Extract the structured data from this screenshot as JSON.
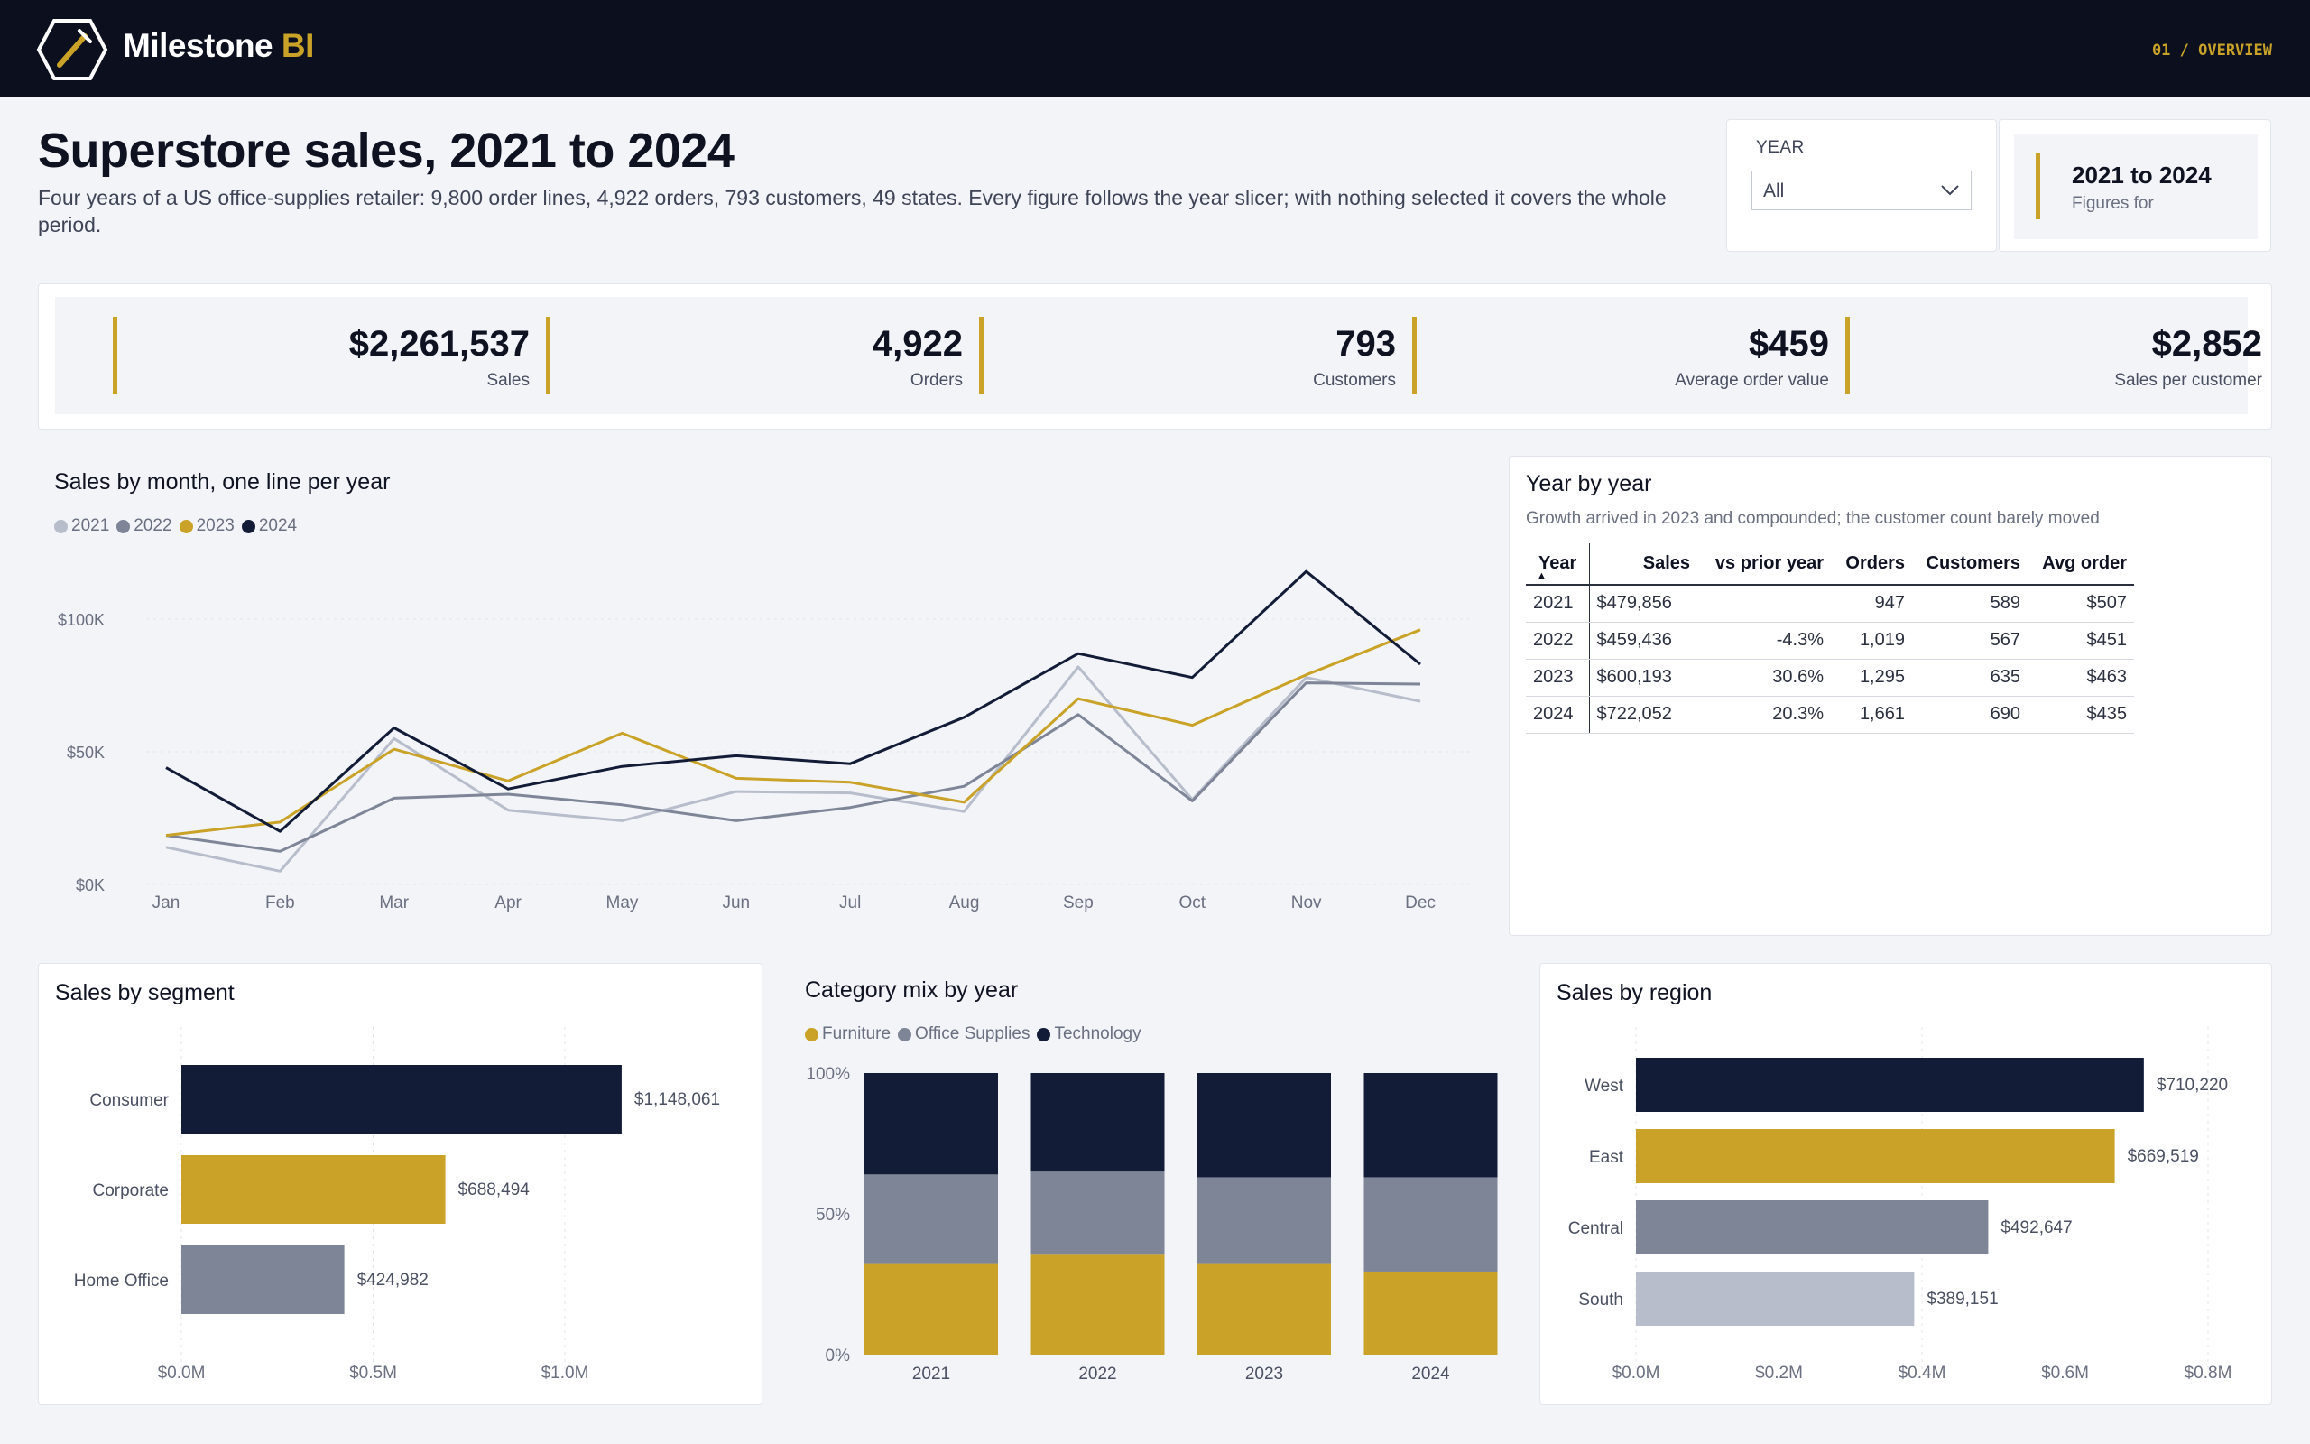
{
  "app": {
    "brand_name": "Milestone",
    "brand_accent": "BI",
    "page_tag": "01 / OVERVIEW"
  },
  "header": {
    "title": "Superstore sales, 2021 to 2024",
    "subtitle": "Four years of a US office-supplies retailer: 9,800 order lines, 4,922 orders, 793 customers, 49 states. Every figure follows the year slicer; with nothing selected it covers the whole period."
  },
  "slicer": {
    "label": "YEAR",
    "value": "All",
    "icon": "chevron-down-icon"
  },
  "context": {
    "value": "2021 to 2024",
    "label": "Figures for"
  },
  "kpis": [
    {
      "value": "$2,261,537",
      "label": "Sales"
    },
    {
      "value": "4,922",
      "label": "Orders"
    },
    {
      "value": "793",
      "label": "Customers"
    },
    {
      "value": "$459",
      "label": "Average order value"
    },
    {
      "value": "$2,852",
      "label": "Sales per customer"
    }
  ],
  "colors": {
    "navy": "#121c36",
    "gold": "#c9a227",
    "slate": "#7d8597",
    "light": "#b8bdcb",
    "topbar": "#0b0f1e"
  },
  "line_card": {
    "title": "Sales by month, one line per year"
  },
  "year_table": {
    "title": "Year by year",
    "subtitle": "Growth arrived in 2023 and compounded; the customer count barely moved",
    "columns": [
      "Year",
      "Sales",
      "vs prior year",
      "Orders",
      "Customers",
      "Avg order"
    ],
    "rows": [
      [
        "2021",
        "$479,856",
        "",
        "947",
        "589",
        "$507"
      ],
      [
        "2022",
        "$459,436",
        "-4.3%",
        "1,019",
        "567",
        "$451"
      ],
      [
        "2023",
        "$600,193",
        "30.6%",
        "1,295",
        "635",
        "$463"
      ],
      [
        "2024",
        "$722,052",
        "20.3%",
        "1,661",
        "690",
        "$435"
      ]
    ]
  },
  "segment_card": {
    "title": "Sales by segment"
  },
  "category_card": {
    "title": "Category mix by year"
  },
  "region_card": {
    "title": "Sales by region"
  },
  "chart_data": [
    {
      "type": "line",
      "title": "Sales by month, one line per year",
      "x": [
        "Jan",
        "Feb",
        "Mar",
        "Apr",
        "May",
        "Jun",
        "Jul",
        "Aug",
        "Sep",
        "Oct",
        "Nov",
        "Dec"
      ],
      "ylim": [
        0,
        110000
      ],
      "yticks": [
        {
          "v": 0,
          "label": "$0K"
        },
        {
          "v": 50000,
          "label": "$50K"
        },
        {
          "v": 100000,
          "label": "$100K"
        }
      ],
      "grid": true,
      "legend_position": "top-left",
      "series": [
        {
          "name": "2021",
          "color": "#b8bdcb",
          "values": [
            14000,
            5000,
            55000,
            28000,
            24000,
            35000,
            34500,
            27500,
            82000,
            32000,
            78000,
            69000
          ]
        },
        {
          "name": "2022",
          "color": "#7d8597",
          "values": [
            18500,
            12500,
            32500,
            34000,
            30000,
            24000,
            29000,
            37000,
            64000,
            31500,
            76000,
            75500
          ]
        },
        {
          "name": "2023",
          "color": "#c9a227",
          "values": [
            18500,
            23500,
            51000,
            39000,
            57000,
            40000,
            38500,
            31000,
            70000,
            60000,
            79000,
            96000
          ]
        },
        {
          "name": "2024",
          "color": "#121c36",
          "values": [
            44000,
            20000,
            59000,
            36000,
            44500,
            48500,
            45500,
            63000,
            87000,
            78000,
            118000,
            83000
          ]
        }
      ]
    },
    {
      "type": "bar",
      "orientation": "horizontal",
      "title": "Sales by segment",
      "categories": [
        "Consumer",
        "Corporate",
        "Home Office"
      ],
      "values": [
        1148061,
        688494,
        424982
      ],
      "data_labels": [
        "$1,148,061",
        "$688,494",
        "$424,982"
      ],
      "colors": [
        "#121c36",
        "#c9a227",
        "#7d8597"
      ],
      "xlim": [
        0,
        1200000
      ],
      "xticks": [
        {
          "v": 0,
          "label": "$0.0M"
        },
        {
          "v": 500000,
          "label": "$0.5M"
        },
        {
          "v": 1000000,
          "label": "$1.0M"
        }
      ]
    },
    {
      "type": "bar",
      "stacked": "percent",
      "title": "Category mix by year",
      "categories": [
        "2021",
        "2022",
        "2023",
        "2024"
      ],
      "legend_position": "top-left",
      "yticks": [
        {
          "v": 0,
          "label": "0%"
        },
        {
          "v": 50,
          "label": "50%"
        },
        {
          "v": 100,
          "label": "100%"
        }
      ],
      "series": [
        {
          "name": "Furniture",
          "color": "#c9a227",
          "values": [
            32.5,
            35.5,
            32.5,
            29.5
          ]
        },
        {
          "name": "Office Supplies",
          "color": "#7d8597",
          "values": [
            31.5,
            29.5,
            30.5,
            33.5
          ]
        },
        {
          "name": "Technology",
          "color": "#121c36",
          "values": [
            36,
            35,
            37,
            37
          ]
        }
      ]
    },
    {
      "type": "bar",
      "orientation": "horizontal",
      "title": "Sales by region",
      "categories": [
        "West",
        "East",
        "Central",
        "South"
      ],
      "values": [
        710220,
        669519,
        492647,
        389151
      ],
      "data_labels": [
        "$710,220",
        "$669,519",
        "$492,647",
        "$389,151"
      ],
      "colors": [
        "#121c36",
        "#c9a227",
        "#7d8597",
        "#b8bdcb"
      ],
      "xlim": [
        0,
        800000
      ],
      "xticks": [
        {
          "v": 0,
          "label": "$0.0M"
        },
        {
          "v": 200000,
          "label": "$0.2M"
        },
        {
          "v": 400000,
          "label": "$0.4M"
        },
        {
          "v": 600000,
          "label": "$0.6M"
        },
        {
          "v": 800000,
          "label": "$0.8M"
        }
      ]
    }
  ]
}
